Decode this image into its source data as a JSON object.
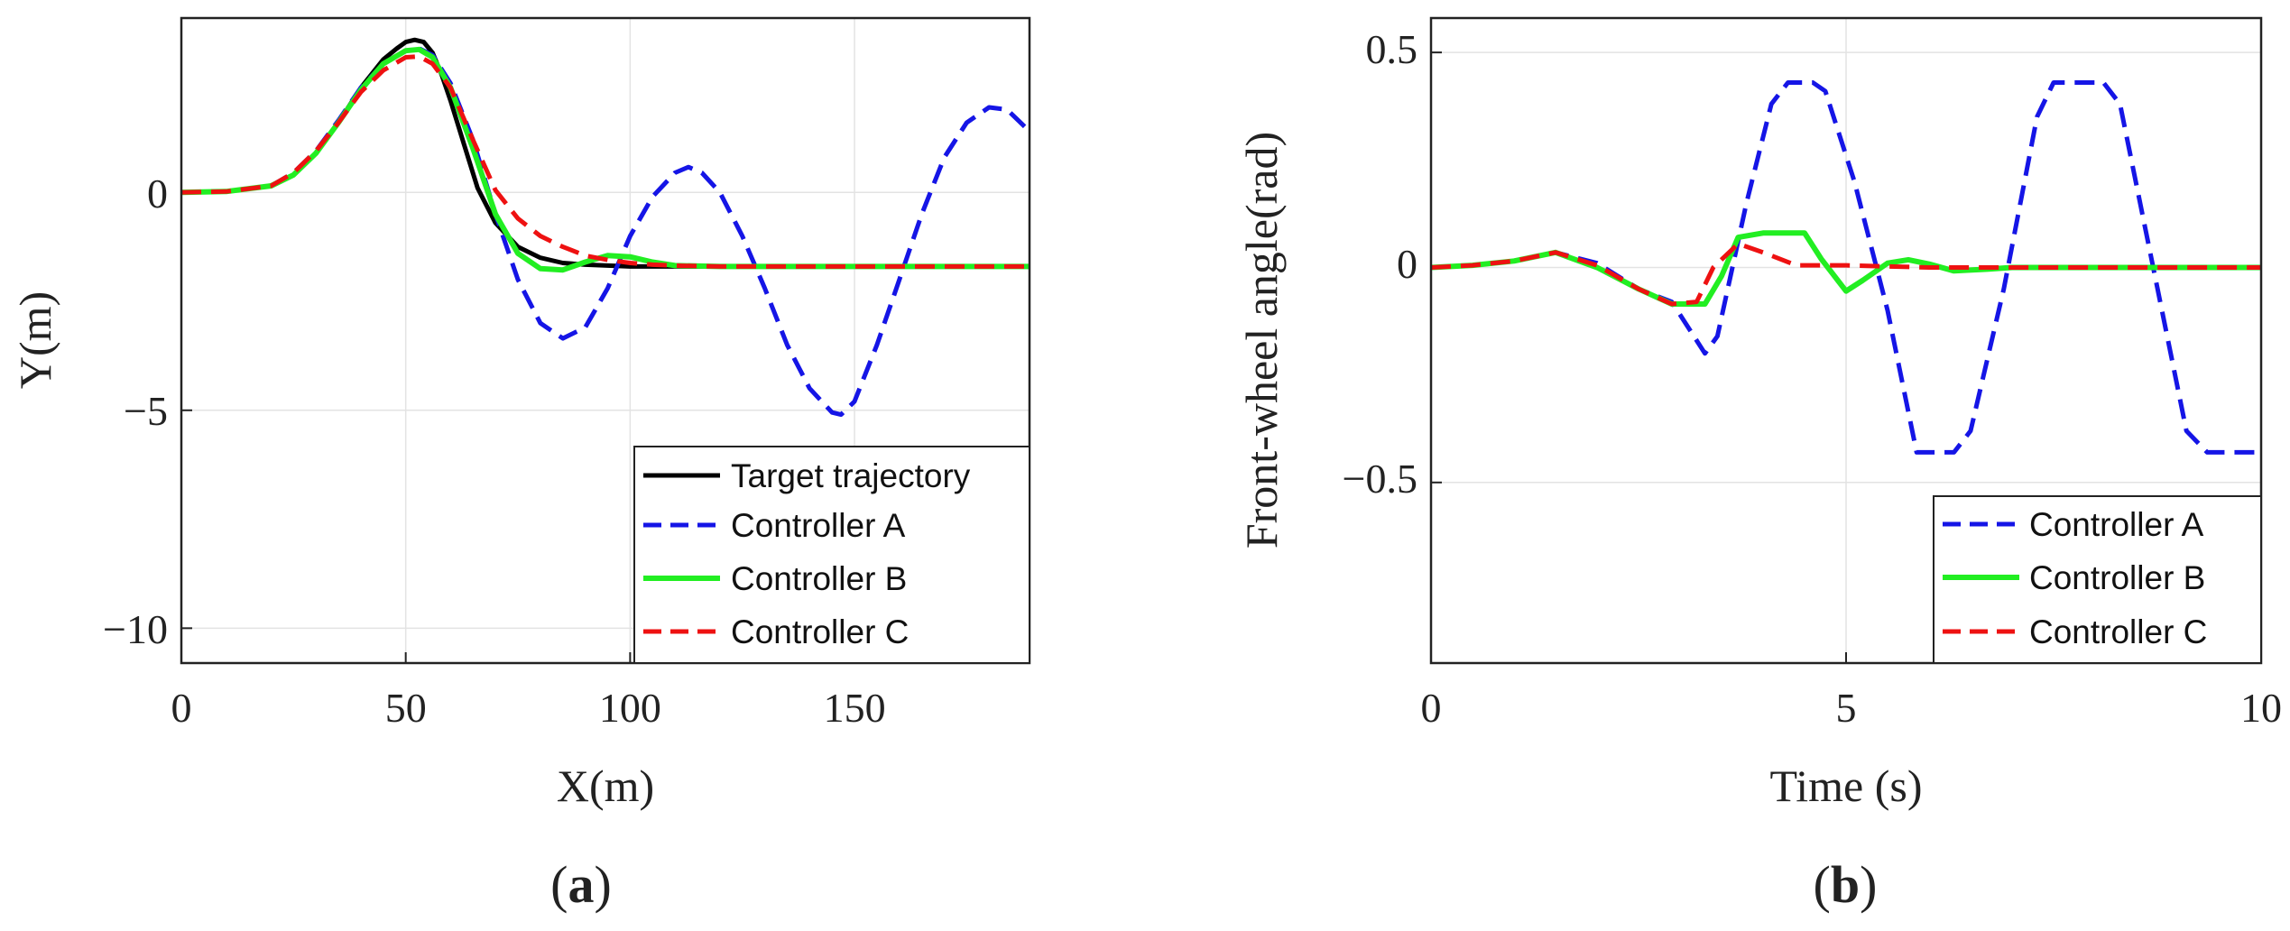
{
  "chart_data": [
    {
      "type": "line",
      "panel_label": "a",
      "xlabel": "X(m)",
      "ylabel": "Y(m)",
      "xlim": [
        0,
        189
      ],
      "ylim": [
        -10.8,
        4.0
      ],
      "xticks": [
        0,
        50,
        100,
        150
      ],
      "xtick_labels": [
        "0",
        "50",
        "100",
        "150"
      ],
      "yticks": [
        0,
        -5,
        -10
      ],
      "ytick_labels": [
        "0",
        "−5",
        "−10"
      ],
      "grid": true,
      "legend_position": "bottom-right",
      "series": [
        {
          "name": "Target trajectory",
          "color": "#000000",
          "dash": "solid",
          "x": [
            0,
            10,
            20,
            25,
            30,
            35,
            40,
            45,
            48,
            50,
            52,
            54,
            56,
            58,
            60,
            63,
            66,
            70,
            75,
            80,
            85,
            90,
            95,
            100,
            110,
            120,
            150,
            189
          ],
          "y": [
            0,
            0.02,
            0.15,
            0.4,
            0.9,
            1.6,
            2.4,
            3.05,
            3.3,
            3.45,
            3.5,
            3.45,
            3.2,
            2.7,
            2.1,
            1.1,
            0.1,
            -0.7,
            -1.25,
            -1.5,
            -1.62,
            -1.66,
            -1.68,
            -1.7,
            -1.7,
            -1.7,
            -1.7,
            -1.7
          ]
        },
        {
          "name": "Controller A",
          "color": "#1515e6",
          "dash": "dashed",
          "x": [
            0,
            10,
            20,
            25,
            30,
            35,
            40,
            45,
            50,
            53,
            56,
            60,
            65,
            70,
            75,
            80,
            85,
            90,
            95,
            100,
            105,
            110,
            113,
            116,
            120,
            125,
            130,
            135,
            140,
            145,
            147,
            150,
            155,
            160,
            165,
            170,
            175,
            180,
            184,
            187,
            189
          ],
          "y": [
            0,
            0.02,
            0.15,
            0.45,
            0.95,
            1.65,
            2.4,
            2.95,
            3.25,
            3.3,
            3.15,
            2.5,
            1.2,
            -0.5,
            -2.0,
            -3.0,
            -3.35,
            -3.1,
            -2.2,
            -1.0,
            -0.1,
            0.45,
            0.58,
            0.45,
            0.0,
            -1.0,
            -2.2,
            -3.5,
            -4.5,
            -5.05,
            -5.1,
            -4.8,
            -3.5,
            -2.0,
            -0.5,
            0.8,
            1.6,
            1.95,
            1.9,
            1.6,
            1.4
          ]
        },
        {
          "name": "Controller B",
          "color": "#22ee22",
          "dash": "solid",
          "x": [
            0,
            10,
            20,
            25,
            30,
            35,
            40,
            45,
            50,
            53,
            56,
            60,
            65,
            70,
            75,
            80,
            85,
            90,
            95,
            100,
            105,
            110,
            120,
            150,
            189
          ],
          "y": [
            0,
            0.02,
            0.15,
            0.4,
            0.9,
            1.6,
            2.35,
            2.95,
            3.25,
            3.28,
            3.1,
            2.4,
            1.0,
            -0.5,
            -1.4,
            -1.75,
            -1.78,
            -1.6,
            -1.45,
            -1.48,
            -1.6,
            -1.68,
            -1.7,
            -1.7,
            -1.7
          ]
        },
        {
          "name": "Controller C",
          "color": "#ee1111",
          "dash": "dashed",
          "x": [
            0,
            10,
            20,
            25,
            30,
            35,
            40,
            45,
            50,
            53,
            56,
            60,
            65,
            70,
            75,
            80,
            85,
            90,
            95,
            100,
            105,
            110,
            120,
            150,
            189
          ],
          "y": [
            0,
            0.02,
            0.15,
            0.45,
            0.95,
            1.6,
            2.3,
            2.8,
            3.1,
            3.12,
            2.95,
            2.4,
            1.2,
            0.05,
            -0.6,
            -1.0,
            -1.25,
            -1.45,
            -1.55,
            -1.62,
            -1.66,
            -1.68,
            -1.7,
            -1.7,
            -1.7
          ]
        }
      ]
    },
    {
      "type": "line",
      "panel_label": "b",
      "xlabel": "Time (s)",
      "ylabel": "Front-wheel angle(rad)",
      "xlim": [
        0,
        10
      ],
      "ylim": [
        -0.92,
        0.58
      ],
      "xticks": [
        0,
        5,
        10
      ],
      "xtick_labels": [
        "0",
        "5",
        "10"
      ],
      "yticks": [
        0.5,
        0,
        -0.5
      ],
      "ytick_labels": [
        "0.5",
        "0",
        "−0.5"
      ],
      "grid": true,
      "legend_position": "bottom-right",
      "series": [
        {
          "name": "Controller A",
          "color": "#1515e6",
          "dash": "dashed",
          "x": [
            0,
            0.5,
            1.0,
            1.5,
            2.0,
            2.5,
            2.9,
            3.3,
            3.45,
            3.8,
            4.1,
            4.3,
            4.6,
            4.75,
            5.1,
            5.5,
            5.85,
            6.3,
            6.5,
            6.9,
            7.3,
            7.5,
            8.1,
            8.3,
            8.7,
            9.1,
            9.35,
            10.0
          ],
          "y": [
            0,
            0.005,
            0.015,
            0.035,
            0.01,
            -0.05,
            -0.08,
            -0.2,
            -0.16,
            0.15,
            0.38,
            0.43,
            0.43,
            0.41,
            0.2,
            -0.1,
            -0.43,
            -0.43,
            -0.38,
            -0.05,
            0.35,
            0.43,
            0.43,
            0.38,
            0.0,
            -0.38,
            -0.43,
            -0.43
          ]
        },
        {
          "name": "Controller B",
          "color": "#22ee22",
          "dash": "solid",
          "x": [
            0,
            0.5,
            1.0,
            1.5,
            2.0,
            2.5,
            2.9,
            3.3,
            3.5,
            3.7,
            4.0,
            4.5,
            4.7,
            5.0,
            5.2,
            5.5,
            5.75,
            6.0,
            6.3,
            6.7,
            7.0,
            7.5,
            10.0
          ],
          "y": [
            0,
            0.005,
            0.015,
            0.035,
            0.0,
            -0.05,
            -0.085,
            -0.085,
            -0.02,
            0.07,
            0.08,
            0.08,
            0.02,
            -0.055,
            -0.03,
            0.01,
            0.018,
            0.008,
            -0.008,
            -0.004,
            0.0,
            0.0,
            0.0
          ]
        },
        {
          "name": "Controller C",
          "color": "#ee1111",
          "dash": "dashed",
          "x": [
            0,
            0.5,
            1.0,
            1.5,
            2.0,
            2.5,
            2.9,
            3.2,
            3.4,
            3.7,
            4.0,
            4.4,
            5.0,
            6.0,
            10.0
          ],
          "y": [
            0,
            0.005,
            0.015,
            0.035,
            0.005,
            -0.05,
            -0.085,
            -0.08,
            0.0,
            0.055,
            0.035,
            0.005,
            0.005,
            0.0,
            0.0
          ]
        }
      ]
    }
  ]
}
